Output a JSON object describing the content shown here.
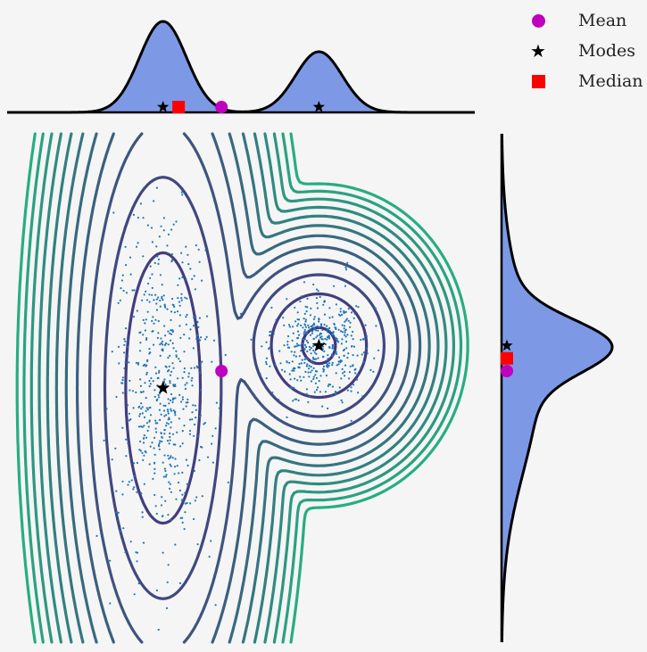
{
  "chart_data": {
    "type": "contour_with_marginals",
    "legend": {
      "placement": "top-right",
      "entries": [
        {
          "label": "Mean",
          "marker": "circle",
          "color": "#bf00bf"
        },
        {
          "label": "Modes",
          "marker": "star",
          "color": "#000000"
        },
        {
          "label": "Median",
          "marker": "square",
          "color": "#ff0000"
        }
      ]
    },
    "xlim": [
      -4,
      8
    ],
    "ylim": [
      -7,
      5
    ],
    "mixture": [
      {
        "weight": 0.6,
        "mean": [
          0,
          -1
        ],
        "sd": [
          0.6,
          2.0
        ]
      },
      {
        "weight": 0.4,
        "mean": [
          4,
          0
        ],
        "sd": [
          0.6,
          0.6
        ]
      }
    ],
    "points": {
      "mean": [
        1.5,
        -0.6
      ],
      "median": [
        0.4,
        -0.3
      ],
      "modes": [
        [
          0,
          -1
        ],
        [
          4,
          0
        ]
      ]
    },
    "contour_count": 12,
    "sample_count": 1000,
    "colors": {
      "fill": "#7d99e6",
      "outline": "#000000",
      "contour_low": "#46327e",
      "contour_high": "#27ad81",
      "scatter": "#1f77b4",
      "mean": "#bf00bf",
      "median": "#ff0000",
      "mode": "#000000"
    }
  }
}
